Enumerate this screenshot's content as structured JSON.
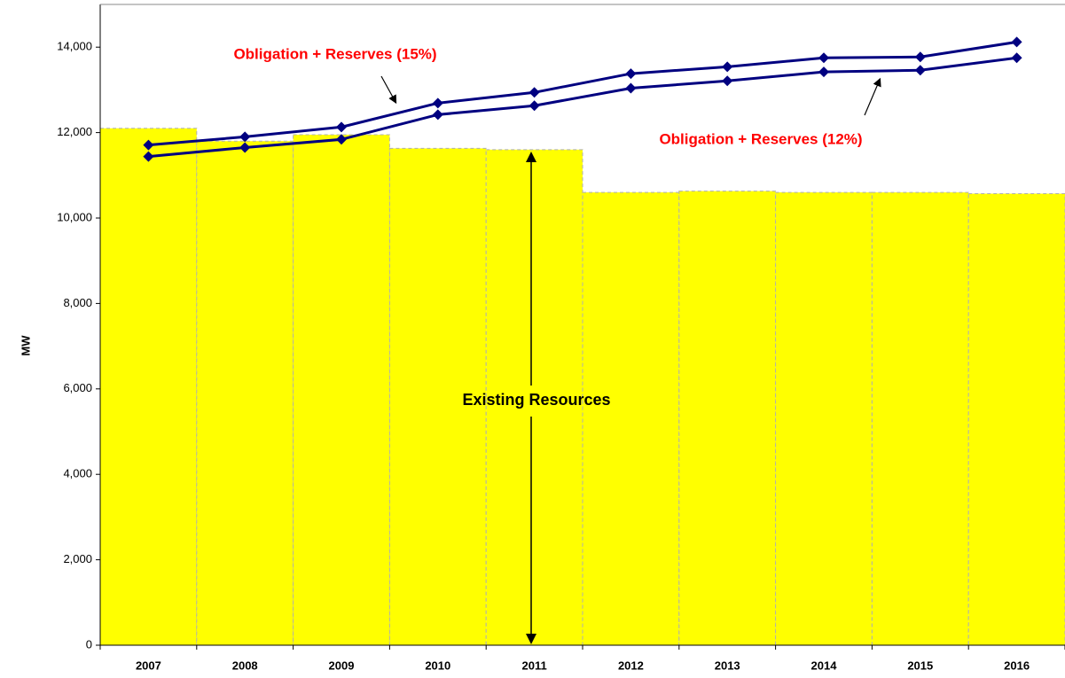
{
  "chart_data": {
    "type": "bar",
    "y_label": "MW",
    "categories": [
      "2007",
      "2008",
      "2009",
      "2010",
      "2011",
      "2012",
      "2013",
      "2014",
      "2015",
      "2016"
    ],
    "series": [
      {
        "name": "Existing Resources",
        "type": "bar",
        "color": "#ffff00",
        "values": [
          12100,
          11800,
          11950,
          11630,
          11600,
          10600,
          10630,
          10600,
          10600,
          10570
        ]
      },
      {
        "name": "Obligation + Reserves (15%)",
        "type": "line",
        "color": "#000080",
        "values": [
          11710,
          11900,
          12130,
          12690,
          12940,
          13380,
          13540,
          13750,
          13770,
          14120
        ]
      },
      {
        "name": "Obligation + Reserves (12%)",
        "type": "line",
        "color": "#000080",
        "values": [
          11440,
          11650,
          11840,
          12420,
          12630,
          13040,
          13210,
          13420,
          13460,
          13750
        ]
      }
    ],
    "ylim": [
      0,
      15000
    ],
    "yticks": [
      0,
      {
        "value": 2000,
        "label": "2,000"
      },
      {
        "value": 4000,
        "label": "4,000"
      },
      {
        "value": 6000,
        "label": "6,000"
      },
      {
        "value": 8000,
        "label": "8,000"
      },
      {
        "value": 10000,
        "label": "10,000"
      },
      {
        "value": 12000,
        "label": "12,000"
      },
      {
        "value": 14000,
        "label": "14,000"
      }
    ],
    "grid": false
  }
}
